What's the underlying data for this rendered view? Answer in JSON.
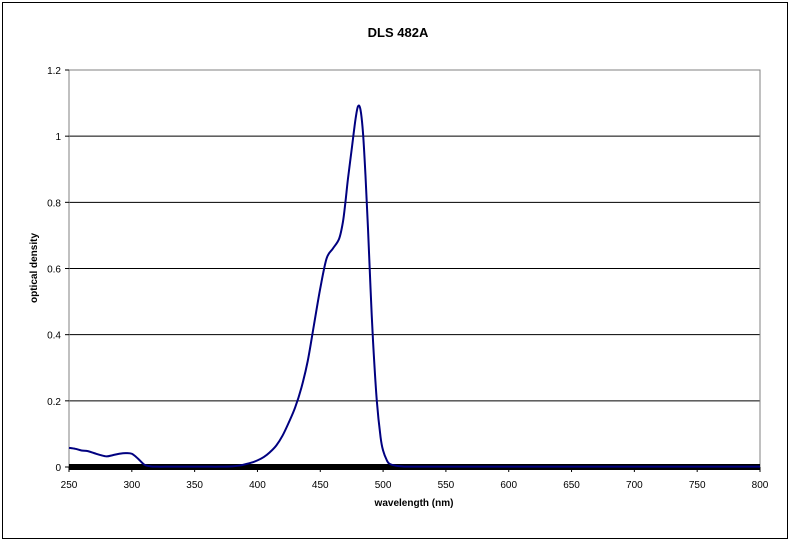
{
  "chart_data": {
    "type": "line",
    "title": "DLS 482A",
    "xlabel": "wavelength (nm)",
    "ylabel": "optical density",
    "xlim": [
      250,
      800
    ],
    "ylim": [
      0,
      1.2
    ],
    "x_ticks": [
      "250",
      "300",
      "350",
      "400",
      "450",
      "500",
      "550",
      "600",
      "650",
      "700",
      "750",
      "800"
    ],
    "y_ticks": [
      "0",
      "0.2",
      "0.4",
      "0.6",
      "0.8",
      "1",
      "1.2"
    ],
    "grid": "horizontal",
    "legend": "none",
    "series_color": "#000080",
    "series": [
      {
        "x": [
          250,
          255,
          260,
          265,
          270,
          275,
          280,
          285,
          290,
          295,
          300,
          305,
          310,
          315,
          320,
          330,
          340,
          350,
          360,
          370,
          380,
          385,
          390,
          395,
          400,
          405,
          410,
          415,
          420,
          425,
          430,
          435,
          440,
          445,
          450,
          455,
          460,
          465,
          468,
          470,
          472,
          475,
          478,
          480,
          482,
          484,
          486,
          488,
          490,
          492,
          495,
          498,
          500,
          503,
          505,
          510,
          515,
          520,
          540,
          560,
          600,
          650,
          700,
          750,
          800
        ],
        "values": [
          0.058,
          0.055,
          0.05,
          0.048,
          0.042,
          0.036,
          0.032,
          0.036,
          0.04,
          0.042,
          0.04,
          0.025,
          0.007,
          0.002,
          0.001,
          0.001,
          0.001,
          0.001,
          0.001,
          0.001,
          0.002,
          0.004,
          0.008,
          0.013,
          0.02,
          0.03,
          0.045,
          0.065,
          0.095,
          0.135,
          0.18,
          0.24,
          0.32,
          0.43,
          0.54,
          0.63,
          0.66,
          0.69,
          0.74,
          0.8,
          0.87,
          0.96,
          1.05,
          1.09,
          1.08,
          1.01,
          0.88,
          0.72,
          0.54,
          0.38,
          0.2,
          0.09,
          0.05,
          0.02,
          0.01,
          0.004,
          0.002,
          0.001,
          0.001,
          0.001,
          0.001,
          0.001,
          0.001,
          0.001,
          0.001
        ]
      }
    ]
  }
}
